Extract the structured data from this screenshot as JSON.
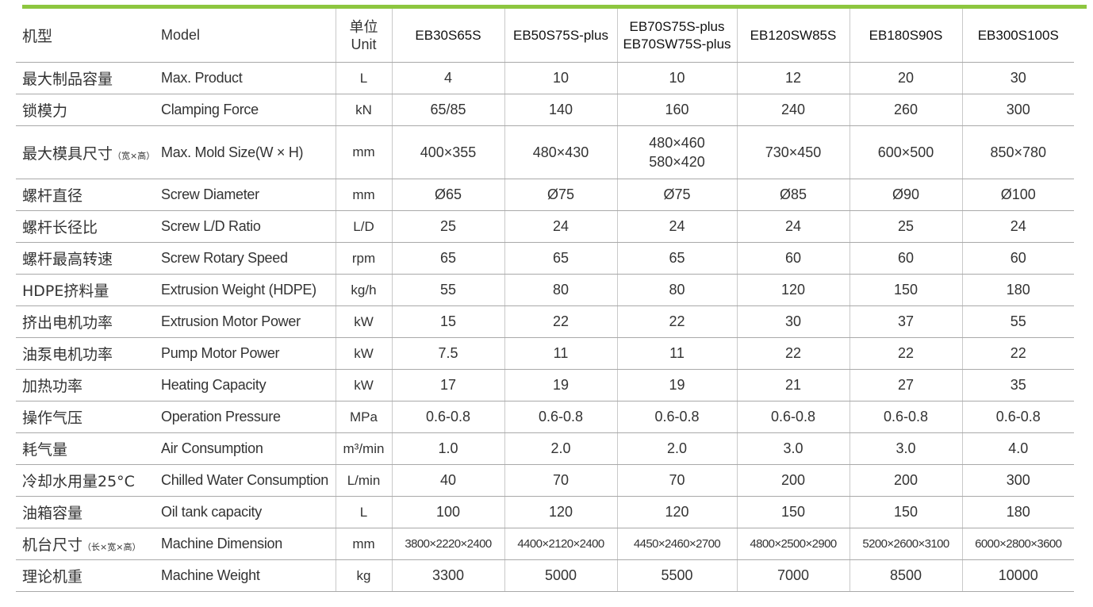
{
  "header": {
    "label_cn": "机型",
    "label_en": "Model",
    "unit_cn": "单位",
    "unit_en": "Unit",
    "models": [
      {
        "line1": "EB30S65S",
        "line2": ""
      },
      {
        "line1": "EB50S75S-plus",
        "line2": ""
      },
      {
        "line1": "EB70S75S-plus",
        "line2": "EB70SW75S-plus"
      },
      {
        "line1": "EB120SW85S",
        "line2": ""
      },
      {
        "line1": "EB180S90S",
        "line2": ""
      },
      {
        "line1": "EB300S100S",
        "line2": ""
      }
    ]
  },
  "rows": [
    {
      "cn": "最大制品容量",
      "cn_note": "",
      "en": "Max. Product",
      "unit": "L",
      "values": [
        "4",
        "10",
        "10",
        "12",
        "20",
        "30"
      ]
    },
    {
      "cn": "锁模力",
      "cn_note": "",
      "en": "Clamping Force",
      "unit": "kN",
      "values": [
        "65/85",
        "140",
        "160",
        "240",
        "260",
        "300"
      ]
    },
    {
      "cn": "最大模具尺寸",
      "cn_note": "（宽×高）",
      "en": "Max. Mold Size(W × H)",
      "unit": "mm",
      "values": [
        "400×355",
        "480×430",
        "480×460",
        "730×450",
        "600×500",
        "850×780"
      ],
      "values2": [
        "",
        "",
        "580×420",
        "",
        "",
        ""
      ]
    },
    {
      "cn": "螺杆直径",
      "cn_note": "",
      "en": "Screw Diameter",
      "unit": "mm",
      "values": [
        "Ø65",
        "Ø75",
        "Ø75",
        "Ø85",
        "Ø90",
        "Ø100"
      ]
    },
    {
      "cn": "螺杆长径比",
      "cn_note": "",
      "en": "Screw L/D Ratio",
      "unit": "L/D",
      "values": [
        "25",
        "24",
        "24",
        "24",
        "25",
        "24"
      ]
    },
    {
      "cn": "螺杆最高转速",
      "cn_note": "",
      "en": "Screw Rotary Speed",
      "unit": "rpm",
      "values": [
        "65",
        "65",
        "65",
        "60",
        "60",
        "60"
      ]
    },
    {
      "cn": "HDPE挤料量",
      "cn_note": "",
      "en": "Extrusion Weight (HDPE)",
      "unit": "kg/h",
      "values": [
        "55",
        "80",
        "80",
        "120",
        "150",
        "180"
      ]
    },
    {
      "cn": "挤出电机功率",
      "cn_note": "",
      "en": "Extrusion Motor Power",
      "unit": "kW",
      "values": [
        "15",
        "22",
        "22",
        "30",
        "37",
        "55"
      ]
    },
    {
      "cn": "油泵电机功率",
      "cn_note": "",
      "en": "Pump Motor Power",
      "unit": "kW",
      "values": [
        "7.5",
        "11",
        "11",
        "22",
        "22",
        "22"
      ]
    },
    {
      "cn": "加热功率",
      "cn_note": "",
      "en": "Heating Capacity",
      "unit": "kW",
      "values": [
        "17",
        "19",
        "19",
        "21",
        "27",
        "35"
      ]
    },
    {
      "cn": "操作气压",
      "cn_note": "",
      "en": "Operation Pressure",
      "unit": "MPa",
      "values": [
        "0.6-0.8",
        "0.6-0.8",
        "0.6-0.8",
        "0.6-0.8",
        "0.6-0.8",
        "0.6-0.8"
      ]
    },
    {
      "cn": "耗气量",
      "cn_note": "",
      "en": "Air Consumption",
      "unit": "m³/min",
      "values": [
        "1.0",
        "2.0",
        "2.0",
        "3.0",
        "3.0",
        "4.0"
      ]
    },
    {
      "cn": "冷却水用量25°C",
      "cn_note": "",
      "en": "Chilled Water Consumption",
      "unit": "L/min",
      "values": [
        "40",
        "70",
        "70",
        "200",
        "200",
        "300"
      ]
    },
    {
      "cn": "油箱容量",
      "cn_note": "",
      "en": "Oil tank capacity",
      "unit": "L",
      "values": [
        "100",
        "120",
        "120",
        "150",
        "150",
        "180"
      ]
    },
    {
      "cn": "机台尺寸",
      "cn_note": "（长×宽×高）",
      "en": "Machine Dimension",
      "unit": "mm",
      "values": [
        "3800×2220×2400",
        "4400×2120×2400",
        "4450×2460×2700",
        "4800×2500×2900",
        "5200×2600×3100",
        "6000×2800×3600"
      ]
    },
    {
      "cn": "理论机重",
      "cn_note": "",
      "en": "Machine Weight",
      "unit": "kg",
      "values": [
        "3300",
        "5000",
        "5500",
        "7000",
        "8500",
        "10000"
      ]
    }
  ],
  "colors": {
    "accent": "#8dc63f",
    "rule": "#a9a9a9",
    "text": "#333333"
  }
}
